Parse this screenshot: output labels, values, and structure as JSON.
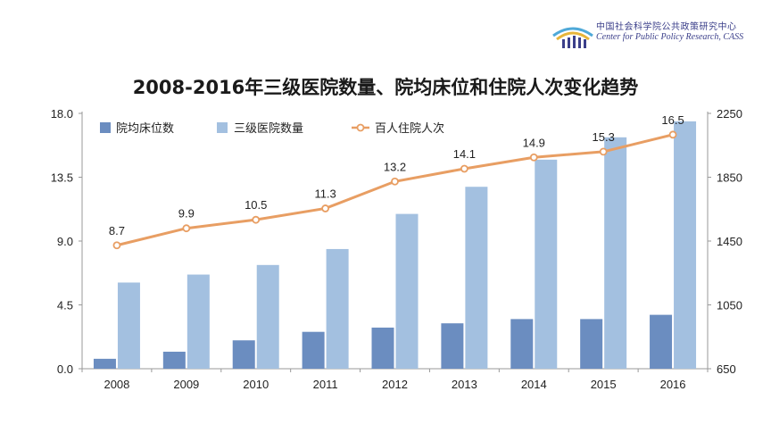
{
  "header": {
    "org_cn": "中国社会科学院公共政策研究中心",
    "org_en": "Center for Public Policy Research, CASS",
    "logo_icon": "cass-ppr-logo-icon"
  },
  "chart_data": {
    "type": "bar",
    "title": "2008-2016年三级医院数量、院均床位和住院人次变化趋势",
    "categories": [
      "2008",
      "2009",
      "2010",
      "2011",
      "2012",
      "2013",
      "2014",
      "2015",
      "2016"
    ],
    "series": [
      {
        "name": "院均床位数",
        "kind": "bar",
        "axis": "left",
        "color": "#6b8dc0",
        "values": [
          0.7,
          1.2,
          2.0,
          2.6,
          2.9,
          3.2,
          3.5,
          3.5,
          3.8
        ]
      },
      {
        "name": "三级医院数量",
        "kind": "bar",
        "axis": "right",
        "color": "#a3c0e0",
        "values": [
          1190,
          1240,
          1300,
          1400,
          1620,
          1790,
          1960,
          2100,
          2200
        ]
      },
      {
        "name": "百人住院人次",
        "kind": "line",
        "axis": "left",
        "color": "#e89e63",
        "values": [
          8.7,
          9.9,
          10.5,
          11.3,
          13.2,
          14.1,
          14.9,
          15.3,
          16.5
        ]
      }
    ],
    "data_labels": [
      "8.7",
      "9.9",
      "10.5",
      "11.3",
      "13.2",
      "14.1",
      "14.9",
      "15.3",
      "16.5"
    ],
    "ylim_left": [
      0,
      18
    ],
    "yticks_left": [
      "0.0",
      "4.5",
      "9.0",
      "13.5",
      "18.0"
    ],
    "ylim_right": [
      650,
      2250
    ],
    "yticks_right": [
      "650",
      "1050",
      "1450",
      "1850",
      "2250"
    ],
    "grid": false,
    "legend": "top-left"
  }
}
